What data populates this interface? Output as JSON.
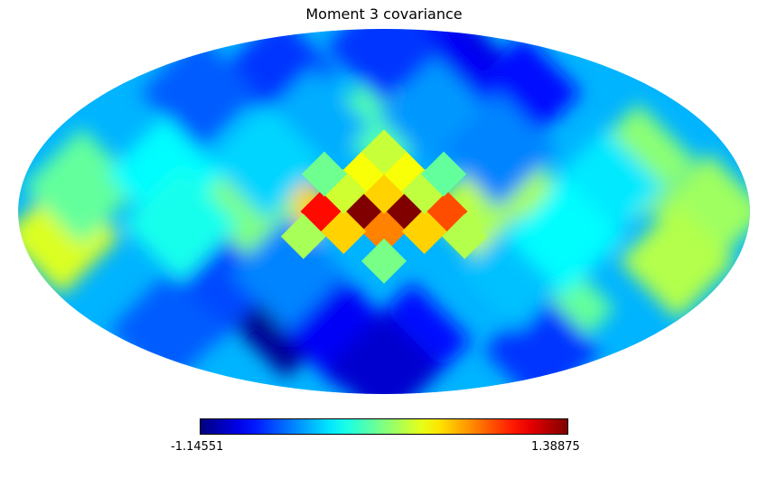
{
  "chart_data": {
    "type": "heatmap",
    "projection": "mollweide",
    "title": "Moment 3 covariance",
    "colormap": "jet",
    "colorbar": {
      "min": -1.14551,
      "max": 1.38875,
      "min_label": "-1.14551",
      "max_label": "1.38875",
      "placement": "bottom"
    },
    "cells": [
      {
        "lon": -10,
        "lat": 0,
        "value": 1.39
      },
      {
        "lon": 10,
        "lat": 0,
        "value": 1.39
      },
      {
        "lon": 0,
        "lat": -8,
        "value": 0.75
      },
      {
        "lon": -30,
        "lat": 0,
        "value": 0.88
      },
      {
        "lon": 30,
        "lat": 0,
        "value": 1.05
      },
      {
        "lon": -20,
        "lat": -8,
        "value": 0.55
      },
      {
        "lon": 20,
        "lat": -8,
        "value": 0.55
      },
      {
        "lon": 0,
        "lat": 8,
        "value": 0.55
      },
      {
        "lon": -10,
        "lat": 16,
        "value": 0.42
      },
      {
        "lon": 10,
        "lat": 16,
        "value": 0.42
      },
      {
        "lon": 0,
        "lat": 24,
        "value": 0.3
      },
      {
        "lon": -20,
        "lat": 8,
        "value": 0.28
      },
      {
        "lon": 20,
        "lat": 8,
        "value": 0.32
      },
      {
        "lon": -50,
        "lat": 0,
        "value": 0.28
      },
      {
        "lon": 50,
        "lat": 0,
        "value": 0.55
      },
      {
        "lon": -70,
        "lat": 0,
        "value": 0.22
      },
      {
        "lon": 70,
        "lat": 0,
        "value": 0.12
      },
      {
        "lon": 0,
        "lat": -20,
        "value": 0.1
      },
      {
        "lon": -40,
        "lat": -10,
        "value": 0.25
      },
      {
        "lon": 40,
        "lat": -10,
        "value": 0.22
      },
      {
        "lon": -30,
        "lat": 15,
        "value": 0.05
      },
      {
        "lon": 30,
        "lat": 15,
        "value": 0.08
      },
      {
        "lon": 0,
        "lat": 38,
        "value": 0.0
      },
      {
        "lon": 160,
        "lat": -10,
        "value": 0.35
      },
      {
        "lon": -160,
        "lat": 0,
        "value": 0.2
      },
      {
        "lon": -130,
        "lat": 20,
        "value": 0.15
      },
      {
        "lon": -150,
        "lat": -20,
        "value": 0.25
      },
      {
        "lon": 150,
        "lat": 10,
        "value": 0.05
      },
      {
        "lon": -100,
        "lat": -40,
        "value": 0.05
      },
      {
        "lon": -60,
        "lat": 60,
        "value": -0.9
      },
      {
        "lon": -90,
        "lat": 50,
        "value": -0.8
      },
      {
        "lon": -40,
        "lat": 65,
        "value": -0.85
      },
      {
        "lon": 80,
        "lat": 60,
        "value": -0.7
      },
      {
        "lon": 120,
        "lat": 50,
        "value": -0.6
      },
      {
        "lon": 60,
        "lat": -45,
        "value": -1.1
      },
      {
        "lon": 30,
        "lat": -50,
        "value": -0.85
      },
      {
        "lon": -20,
        "lat": -55,
        "value": -0.8
      },
      {
        "lon": 90,
        "lat": -30,
        "value": -0.65
      },
      {
        "lon": 0,
        "lat": -70,
        "value": -0.95
      },
      {
        "lon": -120,
        "lat": -60,
        "value": -0.7
      },
      {
        "lon": 140,
        "lat": -50,
        "value": -0.6
      },
      {
        "lon": 0,
        "lat": 75,
        "value": -0.7
      },
      {
        "lon": -30,
        "lat": 40,
        "value": -0.45
      },
      {
        "lon": 40,
        "lat": 35,
        "value": -0.4
      },
      {
        "lon": -60,
        "lat": 25,
        "value": -0.5
      },
      {
        "lon": 60,
        "lat": 20,
        "value": -0.3
      },
      {
        "lon": -70,
        "lat": -25,
        "value": -0.35
      },
      {
        "lon": 50,
        "lat": -25,
        "value": -0.5
      },
      {
        "lon": 110,
        "lat": 15,
        "value": -0.2
      },
      {
        "lon": -110,
        "lat": 10,
        "value": -0.25
      },
      {
        "lon": 100,
        "lat": -5,
        "value": -0.15
      },
      {
        "lon": -90,
        "lat": -10,
        "value": -0.2
      }
    ]
  }
}
